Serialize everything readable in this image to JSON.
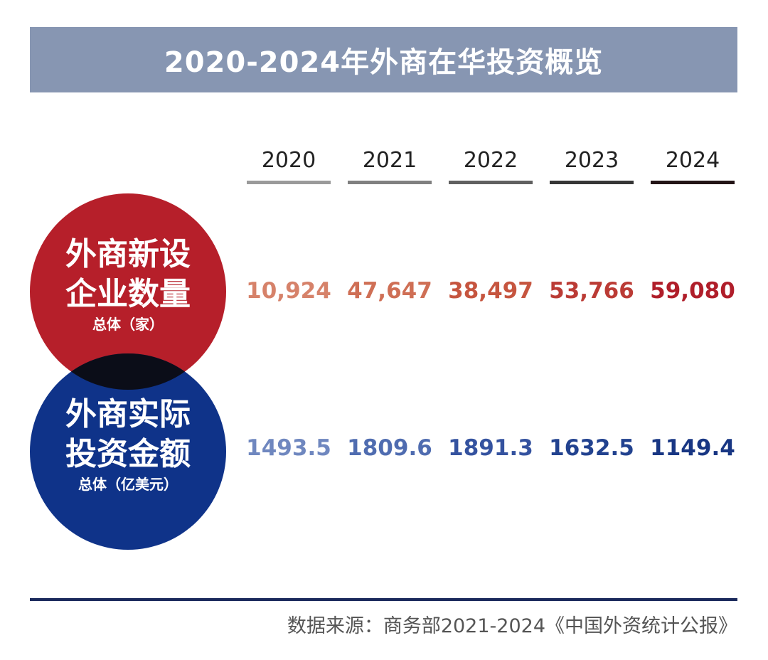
{
  "title": "2020-2024年外商在华投资概览",
  "source": "数据来源：商务部2021-2024《中国外资统计公报》",
  "colors": {
    "title_bg": "#8796b2",
    "red": "#b61f2a",
    "blue": "#0f3389",
    "overlap": "#0b0d18",
    "year_lines": [
      "#9a9a9a",
      "#808080",
      "#606060",
      "#363636",
      "#231416"
    ],
    "red_values": [
      "#d6826a",
      "#cf6f55",
      "#c6553f",
      "#bb3b35",
      "#b01e2a"
    ],
    "blue_values": [
      "#6f87bf",
      "#4f6cb0",
      "#34529f",
      "#22428f",
      "#183683"
    ]
  },
  "chart_data": {
    "type": "table",
    "title": "2020-2024年外商在华投资概览",
    "columns": [
      "2020",
      "2021",
      "2022",
      "2023",
      "2024"
    ],
    "rows": [
      {
        "label_line1": "外商新设",
        "label_line2": "企业数量",
        "unit": "总体（家）",
        "display": [
          "10,924",
          "47,647",
          "38,497",
          "53,766",
          "59,080"
        ],
        "values": [
          10924,
          47647,
          38497,
          53766,
          59080
        ]
      },
      {
        "label_line1": "外商实际",
        "label_line2": "投资金额",
        "unit": "总体（亿美元）",
        "display": [
          "1493.5",
          "1809.6",
          "1891.3",
          "1632.5",
          "1149.4"
        ],
        "values": [
          1493.5,
          1809.6,
          1891.3,
          1632.5,
          1149.4
        ]
      }
    ]
  }
}
